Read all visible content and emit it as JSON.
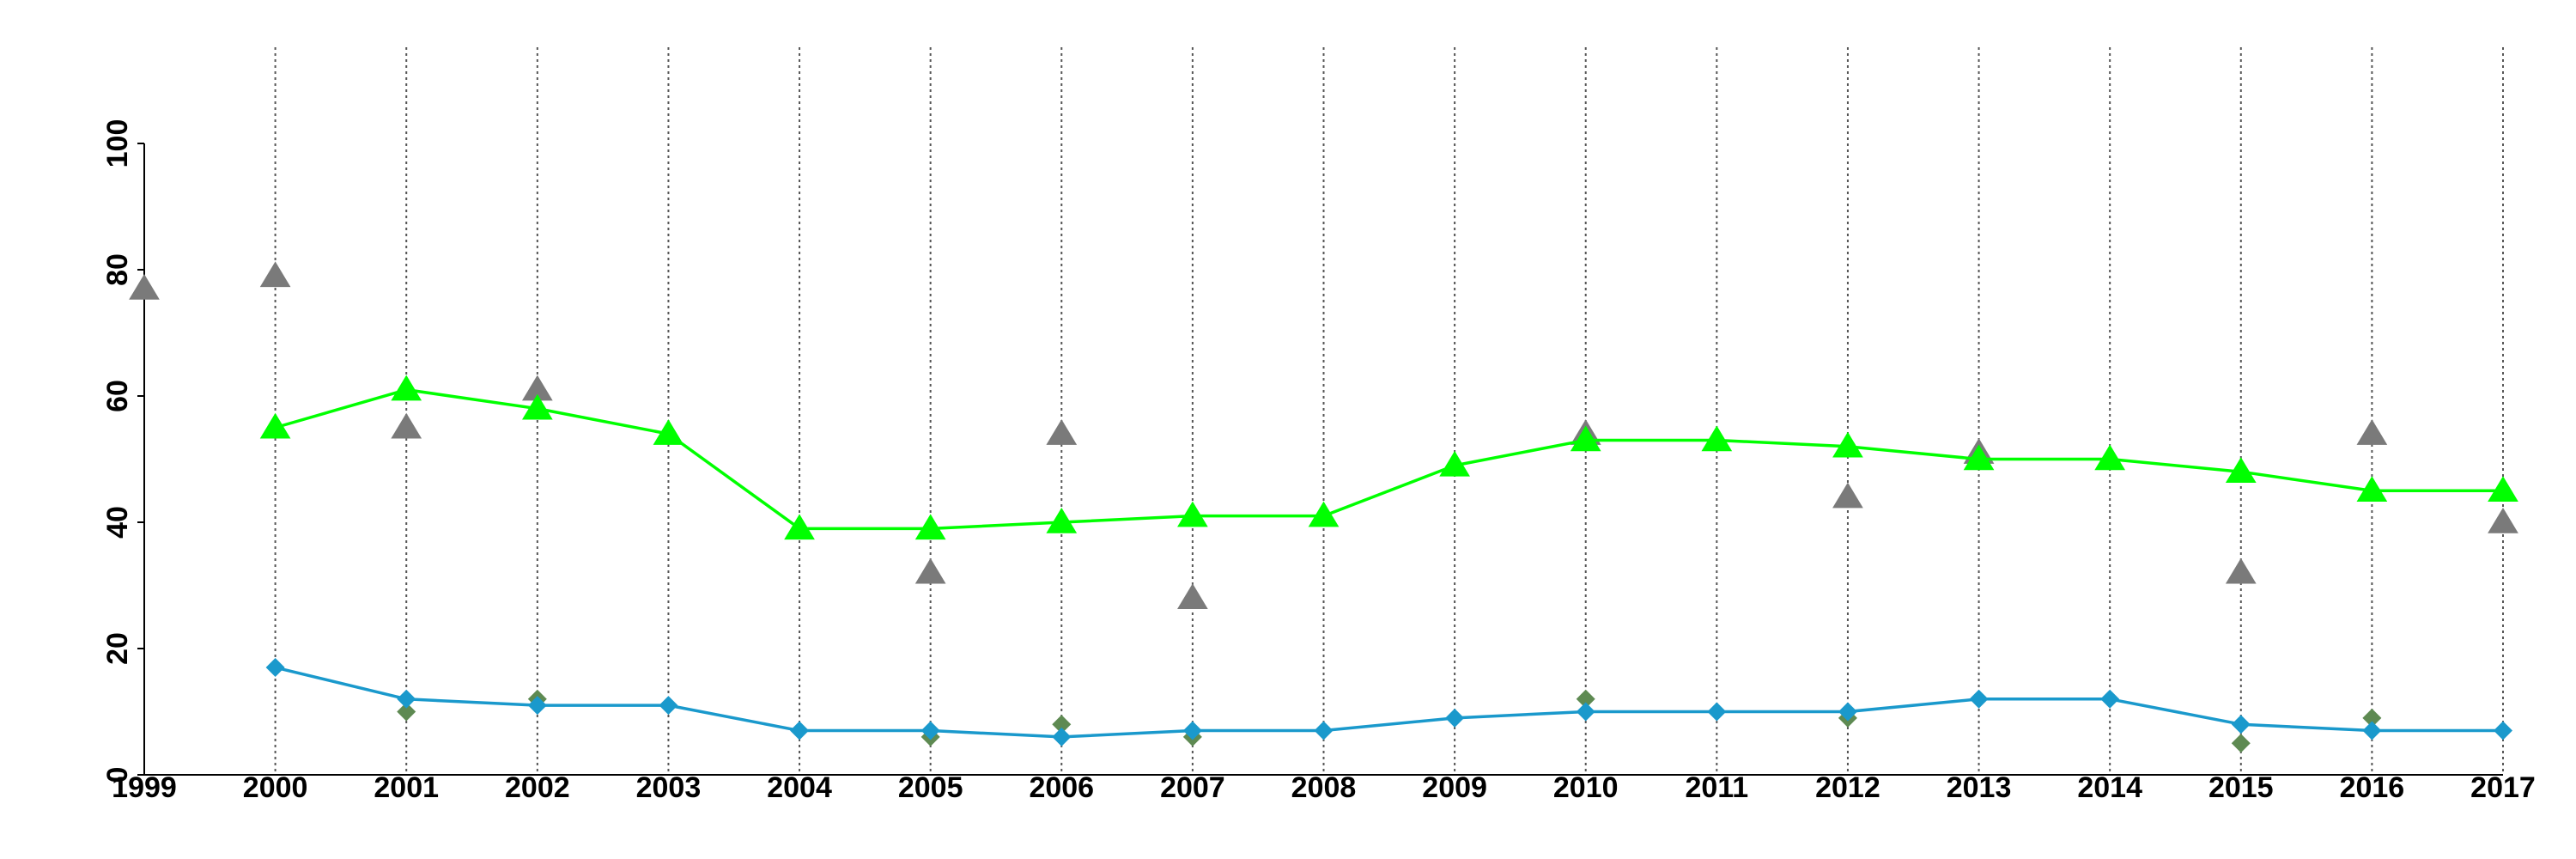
{
  "chart_data": {
    "type": "line",
    "x": [
      1999,
      2000,
      2001,
      2002,
      2003,
      2004,
      2005,
      2006,
      2007,
      2008,
      2009,
      2010,
      2011,
      2012,
      2013,
      2014,
      2015,
      2016,
      2017
    ],
    "xlim": [
      1999,
      2017
    ],
    "ylim": [
      0,
      100
    ],
    "yticks": [
      0,
      20,
      40,
      60,
      80,
      100
    ],
    "xticks": [
      "1999",
      "2000",
      "2001",
      "2002",
      "2003",
      "2004",
      "2005",
      "2006",
      "2007",
      "2008",
      "2009",
      "2010",
      "2011",
      "2012",
      "2013",
      "2014",
      "2015",
      "2016",
      "2017"
    ],
    "vertical_gridlines": true,
    "series": [
      {
        "kind": "line",
        "marker": "triangle",
        "color": "#00ff00",
        "x": [
          2000,
          2001,
          2002,
          2003,
          2004,
          2005,
          2006,
          2007,
          2008,
          2009,
          2010,
          2011,
          2012,
          2013,
          2014,
          2015,
          2016,
          2017
        ],
        "values": [
          55,
          61,
          58,
          54,
          39,
          39,
          40,
          41,
          41,
          49,
          53,
          53,
          52,
          50,
          50,
          48,
          45,
          45
        ]
      },
      {
        "kind": "line",
        "marker": "diamond",
        "color": "#1a99cc",
        "x": [
          2000,
          2001,
          2002,
          2003,
          2004,
          2005,
          2006,
          2007,
          2008,
          2009,
          2010,
          2011,
          2012,
          2013,
          2014,
          2015,
          2016,
          2017
        ],
        "values": [
          17,
          12,
          11,
          11,
          7,
          7,
          6,
          7,
          7,
          9,
          10,
          10,
          10,
          12,
          12,
          8,
          7,
          7
        ]
      },
      {
        "kind": "scatter",
        "marker": "triangle",
        "color": "#7a7a7a",
        "x": [
          1999,
          2000,
          2001,
          2002,
          2005,
          2006,
          2007,
          2010,
          2012,
          2013,
          2015,
          2016,
          2017
        ],
        "values": [
          77,
          79,
          55,
          61,
          32,
          54,
          28,
          54,
          44,
          51,
          32,
          54,
          40
        ]
      },
      {
        "kind": "scatter",
        "marker": "diamond",
        "color": "#5e8a52",
        "x": [
          2001,
          2002,
          2005,
          2006,
          2007,
          2010,
          2012,
          2015,
          2016
        ],
        "values": [
          10,
          12,
          6,
          8,
          6,
          12,
          9,
          5,
          9
        ]
      }
    ]
  }
}
